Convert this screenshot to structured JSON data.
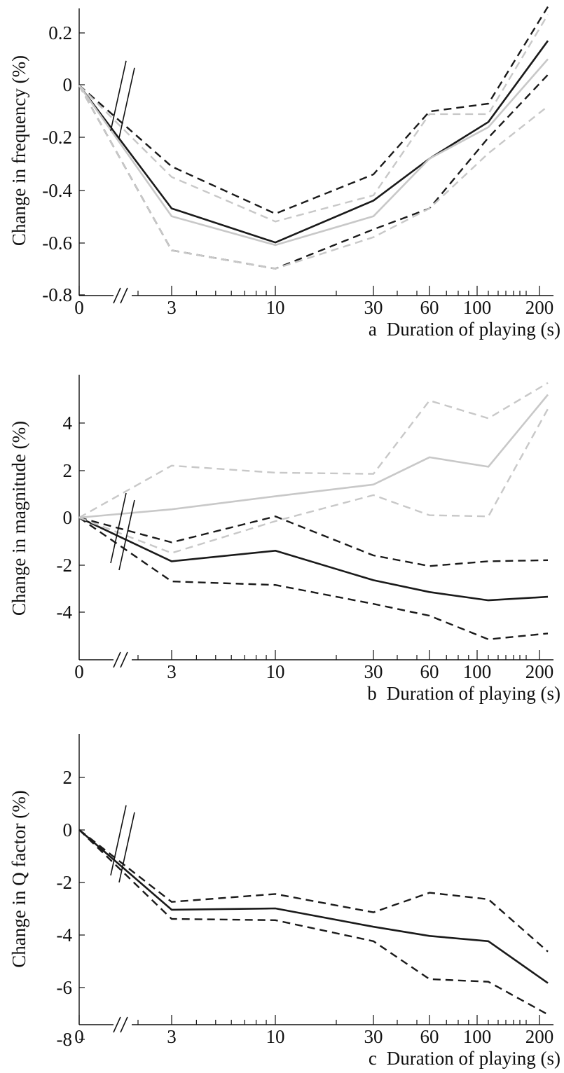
{
  "chart_data": [
    {
      "type": "line",
      "panel": "a",
      "xlabel": "Duration of playing (s)",
      "ylabel": "Change in frequency (%)",
      "x": [
        0,
        3,
        10,
        30,
        60,
        120,
        240
      ],
      "xticks": [
        "0",
        "3",
        "10",
        "30",
        "60",
        "100",
        "200"
      ],
      "yticks": [
        "0.2",
        "0",
        "-0.2",
        "-0.4",
        "-0.6",
        "-0.8"
      ],
      "ylim": [
        -0.8,
        0.3
      ],
      "series": [
        {
          "role": "mean",
          "color": "#1a1a1a",
          "dash": "solid",
          "values": [
            0,
            -0.47,
            -0.6,
            -0.44,
            -0.28,
            -0.14,
            0.17
          ]
        },
        {
          "role": "upper-bound",
          "color": "#1a1a1a",
          "dash": "dashed",
          "values": [
            0,
            -0.31,
            -0.49,
            -0.34,
            -0.1,
            -0.07,
            0.3
          ]
        },
        {
          "role": "lower-bound",
          "color": "#1a1a1a",
          "dash": "dashed",
          "values": [
            0,
            -0.63,
            -0.7,
            -0.55,
            -0.47,
            -0.2,
            0.04
          ]
        },
        {
          "role": "mean",
          "color": "#c8c8c8",
          "dash": "solid",
          "values": [
            0,
            -0.5,
            -0.61,
            -0.5,
            -0.28,
            -0.16,
            0.1
          ]
        },
        {
          "role": "upper-bound",
          "color": "#c8c8c8",
          "dash": "dashed",
          "values": [
            0,
            -0.35,
            -0.52,
            -0.42,
            -0.11,
            -0.11,
            0.27
          ]
        },
        {
          "role": "lower-bound",
          "color": "#c8c8c8",
          "dash": "dashed",
          "values": [
            0,
            -0.63,
            -0.7,
            -0.58,
            -0.47,
            -0.26,
            -0.08
          ]
        }
      ]
    },
    {
      "type": "line",
      "panel": "b",
      "xlabel": "Duration of playing (s)",
      "ylabel": "Change in magnitude (%)",
      "x": [
        0,
        3,
        10,
        30,
        60,
        120,
        240
      ],
      "xticks": [
        "0",
        "3",
        "10",
        "30",
        "60",
        "100",
        "200"
      ],
      "yticks": [
        "4",
        "2",
        "0",
        "-2",
        "-4"
      ],
      "ylim": [
        -6,
        6
      ],
      "series": [
        {
          "role": "mean",
          "color": "#1a1a1a",
          "dash": "solid",
          "values": [
            0,
            -1.85,
            -1.4,
            -2.65,
            -3.15,
            -3.5,
            -3.35
          ]
        },
        {
          "role": "upper-bound",
          "color": "#1a1a1a",
          "dash": "dashed",
          "values": [
            0,
            -1.05,
            0.05,
            -1.6,
            -2.05,
            -1.85,
            -1.8
          ]
        },
        {
          "role": "lower-bound",
          "color": "#1a1a1a",
          "dash": "dashed",
          "values": [
            0,
            -2.7,
            -2.85,
            -3.65,
            -4.15,
            -5.15,
            -4.9
          ]
        },
        {
          "role": "mean",
          "color": "#c8c8c8",
          "dash": "solid",
          "values": [
            0,
            0.35,
            0.9,
            1.4,
            2.55,
            2.15,
            5.2
          ]
        },
        {
          "role": "upper-bound",
          "color": "#c8c8c8",
          "dash": "dashed",
          "values": [
            0,
            2.2,
            1.9,
            1.85,
            4.95,
            4.2,
            5.7
          ]
        },
        {
          "role": "lower-bound",
          "color": "#c8c8c8",
          "dash": "dashed",
          "values": [
            0,
            -1.5,
            -0.15,
            0.95,
            0.1,
            0.05,
            4.6
          ]
        }
      ]
    },
    {
      "type": "line",
      "panel": "c",
      "xlabel": "Duration of playing (s)",
      "ylabel": "Change in Q factor (%)",
      "x": [
        0,
        3,
        10,
        30,
        60,
        120,
        240
      ],
      "xticks": [
        "0",
        "3",
        "10",
        "30",
        "60",
        "100",
        "200"
      ],
      "yticks": [
        "2",
        "0",
        "-2",
        "-4",
        "-6",
        "-8"
      ],
      "ylim": [
        -8,
        3
      ],
      "series": [
        {
          "role": "mean",
          "color": "#1a1a1a",
          "dash": "solid",
          "values": [
            0,
            -3.05,
            -3.0,
            -3.7,
            -4.05,
            -4.25,
            -5.85
          ]
        },
        {
          "role": "upper-bound",
          "color": "#1a1a1a",
          "dash": "dashed",
          "values": [
            0,
            -2.75,
            -2.45,
            -3.15,
            -2.4,
            -2.65,
            -4.65
          ]
        },
        {
          "role": "lower-bound",
          "color": "#1a1a1a",
          "dash": "dashed",
          "values": [
            0,
            -3.4,
            -3.45,
            -4.25,
            -5.7,
            -5.8,
            -7.05
          ]
        }
      ]
    }
  ]
}
